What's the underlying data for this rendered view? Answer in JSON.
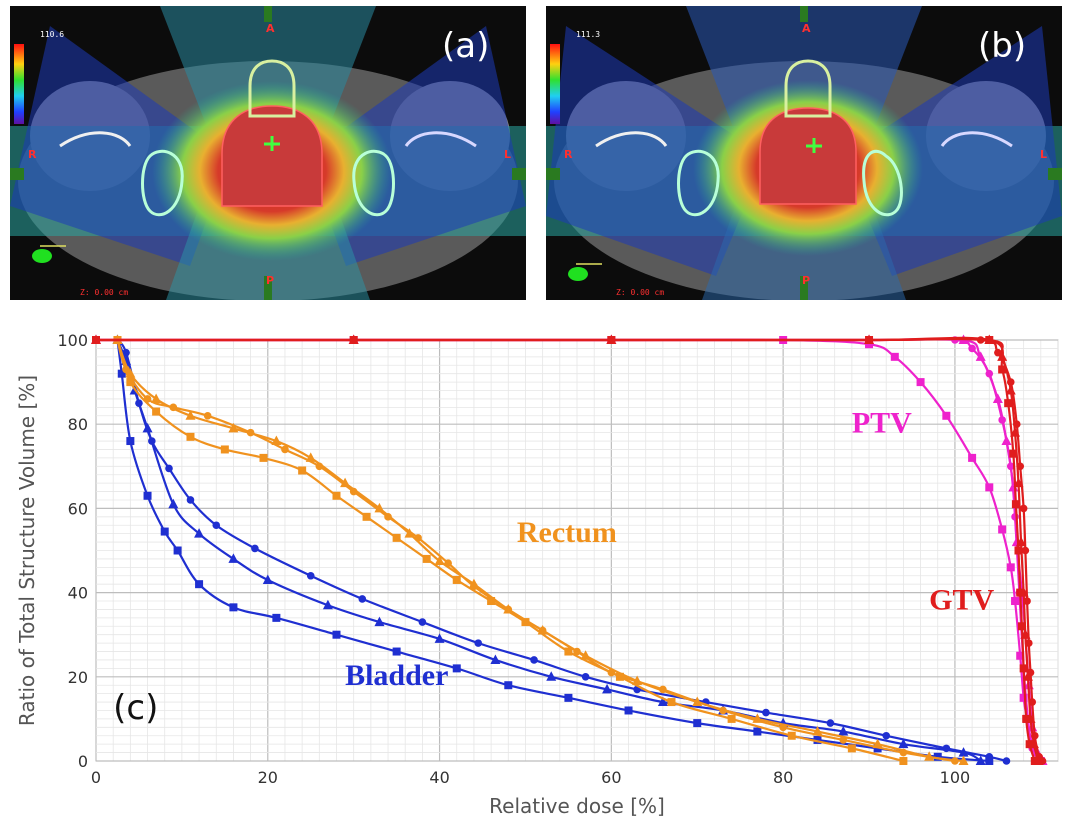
{
  "panels": {
    "a": {
      "letter": "(a)",
      "dose_max": "110.6",
      "z": "Z: 0.00 cm",
      "ant": "A",
      "post": "P",
      "right": "R",
      "left": "L"
    },
    "b": {
      "letter": "(b)",
      "dose_max": "111.3",
      "z": "Z: 0.00 cm",
      "ant": "A",
      "post": "P",
      "right": "R",
      "left": "L"
    }
  },
  "chart_data": {
    "type": "line",
    "panel_label": "(c)",
    "xlabel": "Relative dose [%]",
    "ylabel": "Ratio of Total Structure Volume [%]",
    "xlim": [
      0,
      112
    ],
    "ylim": [
      0,
      100
    ],
    "xticks": [
      0,
      20,
      40,
      60,
      80,
      100
    ],
    "yticks": [
      0,
      20,
      40,
      60,
      80,
      100
    ],
    "grid": true,
    "colors": {
      "bladder": "#1f2fd1",
      "rectum": "#f0921e",
      "ptv": "#ee22cc",
      "gtv": "#e01d1d"
    },
    "series_labels": [
      {
        "text": "Rectum",
        "group": "rectum",
        "x": 49,
        "y": 52
      },
      {
        "text": "Bladder",
        "group": "bladder",
        "x": 29,
        "y": 18
      },
      {
        "text": "PTV",
        "group": "ptv",
        "x": 88,
        "y": 78
      },
      {
        "text": "GTV",
        "group": "gtv",
        "x": 97,
        "y": 36
      }
    ],
    "series": [
      {
        "group": "bladder",
        "marker": "circle",
        "points": [
          [
            2.5,
            100
          ],
          [
            3.5,
            97
          ],
          [
            5,
            85
          ],
          [
            6.5,
            76
          ],
          [
            8.5,
            69.5
          ],
          [
            11,
            62
          ],
          [
            14,
            56
          ],
          [
            18.5,
            50.5
          ],
          [
            25,
            44
          ],
          [
            31,
            38.5
          ],
          [
            38,
            33
          ],
          [
            44.5,
            28
          ],
          [
            51,
            24
          ],
          [
            57,
            20
          ],
          [
            63,
            17
          ],
          [
            71,
            14
          ],
          [
            78,
            11.5
          ],
          [
            85.5,
            9
          ],
          [
            92,
            6
          ],
          [
            99,
            3
          ],
          [
            104,
            1
          ],
          [
            106,
            0
          ]
        ]
      },
      {
        "group": "bladder",
        "marker": "triangle",
        "points": [
          [
            2.5,
            100
          ],
          [
            3.5,
            95
          ],
          [
            4.5,
            88
          ],
          [
            6,
            79
          ],
          [
            9,
            61
          ],
          [
            12,
            54
          ],
          [
            16,
            48
          ],
          [
            20,
            43
          ],
          [
            27,
            37
          ],
          [
            33,
            33
          ],
          [
            40,
            29
          ],
          [
            46.5,
            24
          ],
          [
            53,
            20
          ],
          [
            59.5,
            17
          ],
          [
            66,
            14
          ],
          [
            73,
            12
          ],
          [
            80,
            9
          ],
          [
            87,
            7
          ],
          [
            94,
            4
          ],
          [
            101,
            2
          ],
          [
            103,
            0
          ]
        ]
      },
      {
        "group": "bladder",
        "marker": "square",
        "points": [
          [
            2.5,
            100
          ],
          [
            3,
            92
          ],
          [
            4,
            76
          ],
          [
            6,
            63
          ],
          [
            8,
            54.5
          ],
          [
            9.5,
            50
          ],
          [
            12,
            42
          ],
          [
            16,
            36.5
          ],
          [
            21,
            34
          ],
          [
            28,
            30
          ],
          [
            35,
            26
          ],
          [
            42,
            22
          ],
          [
            48,
            18
          ],
          [
            55,
            15
          ],
          [
            62,
            12
          ],
          [
            70,
            9
          ],
          [
            77,
            7
          ],
          [
            84,
            5
          ],
          [
            91,
            3
          ],
          [
            98,
            1
          ],
          [
            104,
            0
          ]
        ]
      },
      {
        "group": "rectum",
        "marker": "circle",
        "points": [
          [
            2.5,
            100
          ],
          [
            3.5,
            93
          ],
          [
            6,
            86
          ],
          [
            9,
            84
          ],
          [
            13,
            82
          ],
          [
            18,
            78
          ],
          [
            22,
            74
          ],
          [
            26,
            70
          ],
          [
            30,
            64
          ],
          [
            34,
            58
          ],
          [
            37.5,
            53
          ],
          [
            41,
            47
          ],
          [
            44,
            41.5
          ],
          [
            48,
            36
          ],
          [
            52,
            31
          ],
          [
            56,
            26
          ],
          [
            60,
            21
          ],
          [
            66,
            17
          ],
          [
            73,
            12
          ],
          [
            80,
            8
          ],
          [
            87,
            5
          ],
          [
            94,
            2
          ],
          [
            100,
            0
          ]
        ]
      },
      {
        "group": "rectum",
        "marker": "triangle",
        "points": [
          [
            2.5,
            100
          ],
          [
            4,
            92
          ],
          [
            7,
            86
          ],
          [
            11,
            82
          ],
          [
            16,
            79
          ],
          [
            21,
            76
          ],
          [
            25,
            72
          ],
          [
            29,
            66
          ],
          [
            33,
            60
          ],
          [
            36.5,
            54
          ],
          [
            40,
            47.5
          ],
          [
            44,
            42
          ],
          [
            48,
            36
          ],
          [
            52,
            31
          ],
          [
            57,
            25
          ],
          [
            63,
            19
          ],
          [
            70,
            14
          ],
          [
            77,
            10
          ],
          [
            84,
            7
          ],
          [
            91,
            4
          ],
          [
            97,
            1
          ],
          [
            101,
            0
          ]
        ]
      },
      {
        "group": "rectum",
        "marker": "square",
        "points": [
          [
            2.5,
            100
          ],
          [
            4,
            90
          ],
          [
            7,
            83
          ],
          [
            11,
            77
          ],
          [
            15,
            74
          ],
          [
            19.5,
            72
          ],
          [
            24,
            69
          ],
          [
            28,
            63
          ],
          [
            31.5,
            58
          ],
          [
            35,
            53
          ],
          [
            38.5,
            48
          ],
          [
            42,
            43
          ],
          [
            46,
            38
          ],
          [
            50,
            33
          ],
          [
            55,
            26
          ],
          [
            61,
            20
          ],
          [
            67,
            14
          ],
          [
            74,
            10
          ],
          [
            81,
            6
          ],
          [
            88,
            3
          ],
          [
            94,
            0
          ]
        ]
      },
      {
        "group": "ptv",
        "marker": "circle",
        "points": [
          [
            0,
            100
          ],
          [
            30,
            100
          ],
          [
            60,
            100
          ],
          [
            90,
            100
          ],
          [
            100,
            100
          ],
          [
            102,
            98
          ],
          [
            104,
            92
          ],
          [
            105.5,
            81
          ],
          [
            106.5,
            70
          ],
          [
            107,
            58
          ],
          [
            107.5,
            40
          ],
          [
            108,
            22
          ],
          [
            108.5,
            10
          ],
          [
            109,
            3
          ],
          [
            110,
            0
          ]
        ]
      },
      {
        "group": "ptv",
        "marker": "triangle",
        "points": [
          [
            0,
            100
          ],
          [
            30,
            100
          ],
          [
            60,
            100
          ],
          [
            90,
            100
          ],
          [
            101,
            100
          ],
          [
            103,
            96
          ],
          [
            105,
            86
          ],
          [
            106,
            76
          ],
          [
            106.8,
            65
          ],
          [
            107.2,
            52
          ],
          [
            107.8,
            40
          ],
          [
            108.2,
            30
          ],
          [
            108.6,
            18
          ],
          [
            109,
            8
          ],
          [
            109.6,
            2
          ],
          [
            110.2,
            0
          ]
        ]
      },
      {
        "group": "ptv",
        "marker": "square",
        "points": [
          [
            0,
            100
          ],
          [
            30,
            100
          ],
          [
            60,
            100
          ],
          [
            80,
            100
          ],
          [
            90,
            99
          ],
          [
            93,
            96
          ],
          [
            96,
            90
          ],
          [
            99,
            82
          ],
          [
            102,
            72
          ],
          [
            104,
            65
          ],
          [
            105.5,
            55
          ],
          [
            106.5,
            46
          ],
          [
            107,
            38
          ],
          [
            107.6,
            25
          ],
          [
            108,
            15
          ],
          [
            108.4,
            10
          ],
          [
            109,
            4
          ],
          [
            110,
            0
          ]
        ]
      },
      {
        "group": "gtv",
        "marker": "circle",
        "points": [
          [
            0,
            100
          ],
          [
            30,
            100
          ],
          [
            60,
            100
          ],
          [
            90,
            100
          ],
          [
            103,
            100
          ],
          [
            105,
            97
          ],
          [
            106.5,
            90
          ],
          [
            107.2,
            80
          ],
          [
            107.6,
            70
          ],
          [
            108,
            60
          ],
          [
            108.2,
            50
          ],
          [
            108.4,
            38
          ],
          [
            108.6,
            28
          ],
          [
            108.8,
            21
          ],
          [
            109,
            14
          ],
          [
            109.3,
            6
          ],
          [
            109.8,
            1
          ],
          [
            110.2,
            0
          ]
        ]
      },
      {
        "group": "gtv",
        "marker": "triangle",
        "points": [
          [
            0,
            100
          ],
          [
            30,
            100
          ],
          [
            60,
            100
          ],
          [
            90,
            100
          ],
          [
            104,
            100
          ],
          [
            105.5,
            96
          ],
          [
            106.5,
            88
          ],
          [
            107,
            78
          ],
          [
            107.4,
            66
          ],
          [
            107.7,
            52
          ],
          [
            108,
            40
          ],
          [
            108.2,
            30
          ],
          [
            108.5,
            20
          ],
          [
            108.8,
            10
          ],
          [
            109.2,
            4
          ],
          [
            109.7,
            0
          ]
        ]
      },
      {
        "group": "gtv",
        "marker": "square",
        "points": [
          [
            0,
            100
          ],
          [
            30,
            100
          ],
          [
            60,
            100
          ],
          [
            90,
            100
          ],
          [
            104,
            100
          ],
          [
            105.5,
            93
          ],
          [
            106.2,
            85
          ],
          [
            106.8,
            73
          ],
          [
            107.1,
            61
          ],
          [
            107.4,
            50
          ],
          [
            107.6,
            40
          ],
          [
            107.8,
            32
          ],
          [
            108,
            22
          ],
          [
            108.3,
            10
          ],
          [
            108.7,
            4
          ],
          [
            109.3,
            0
          ]
        ]
      }
    ]
  }
}
